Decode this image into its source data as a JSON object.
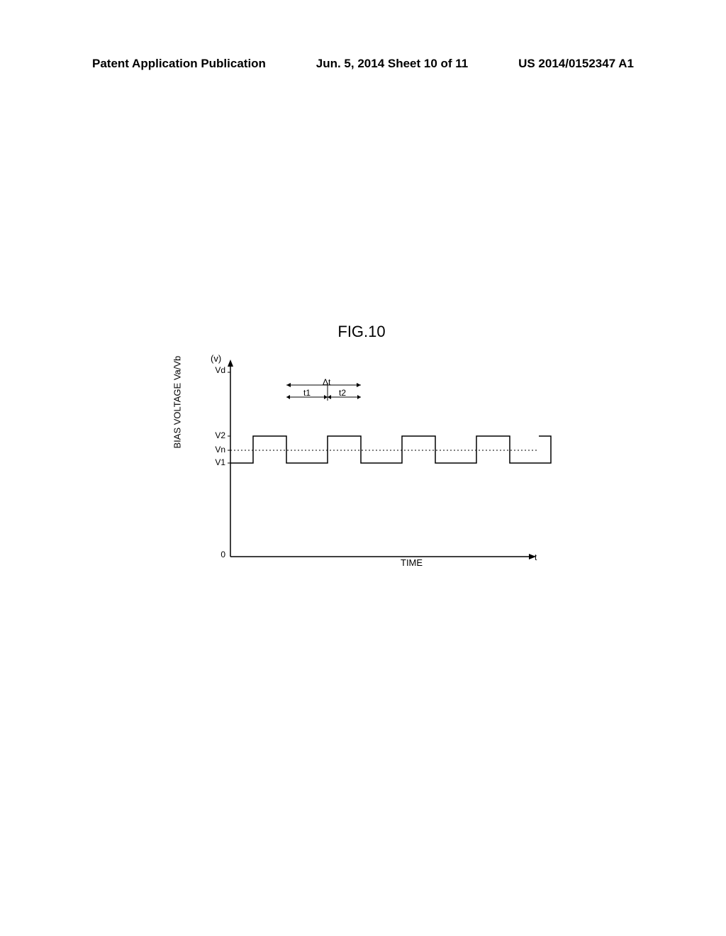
{
  "header": {
    "left": "Patent Application Publication",
    "center": "Jun. 5, 2014  Sheet 10 of 11",
    "right": "US 2014/0152347 A1"
  },
  "figure": {
    "title": "FIG.10",
    "y_unit": "(v)",
    "y_label": "BIAS VOLTAGE Va/Vb",
    "x_label": "TIME",
    "x_end": "t",
    "y_ticks": {
      "vd": "Vd",
      "v2": "V2",
      "vn": "Vn",
      "v1": "V1",
      "zero": "0"
    },
    "time_markers": {
      "delta_t": "Δt",
      "t1": "t1",
      "t2": "t2"
    },
    "chart_style": {
      "stroke": "#000000",
      "stroke_width": 1.5,
      "dash_array": "2,3",
      "y_axis_x": 95,
      "x_axis_y": 280,
      "vd_y": 20,
      "v2_y": 110,
      "vn_y": 130,
      "v1_y": 148,
      "axis_end_x": 520,
      "pulse_start_x": 127,
      "period": 105,
      "duty_high": 47
    }
  }
}
